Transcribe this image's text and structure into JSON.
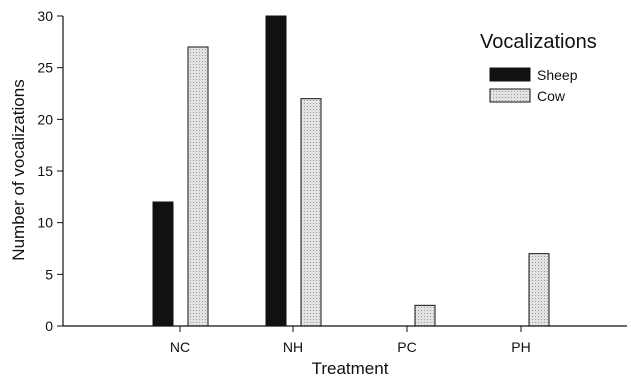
{
  "chart_data": {
    "type": "bar",
    "categories": [
      "NC",
      "NH",
      "PC",
      "PH"
    ],
    "series": [
      {
        "name": "Sheep",
        "values": [
          12,
          30,
          0,
          0
        ],
        "color": "#111111"
      },
      {
        "name": "Cow",
        "values": [
          27,
          22,
          2,
          7
        ],
        "color": "#d9d9d9"
      }
    ],
    "xlabel": "Treatment",
    "ylabel": "Number of vocalizations",
    "ylim": [
      0,
      30
    ],
    "yticks": [
      0,
      5,
      10,
      15,
      20,
      25,
      30
    ],
    "legend": {
      "title": "Vocalizations",
      "placement": "top-right"
    },
    "grid": false
  }
}
